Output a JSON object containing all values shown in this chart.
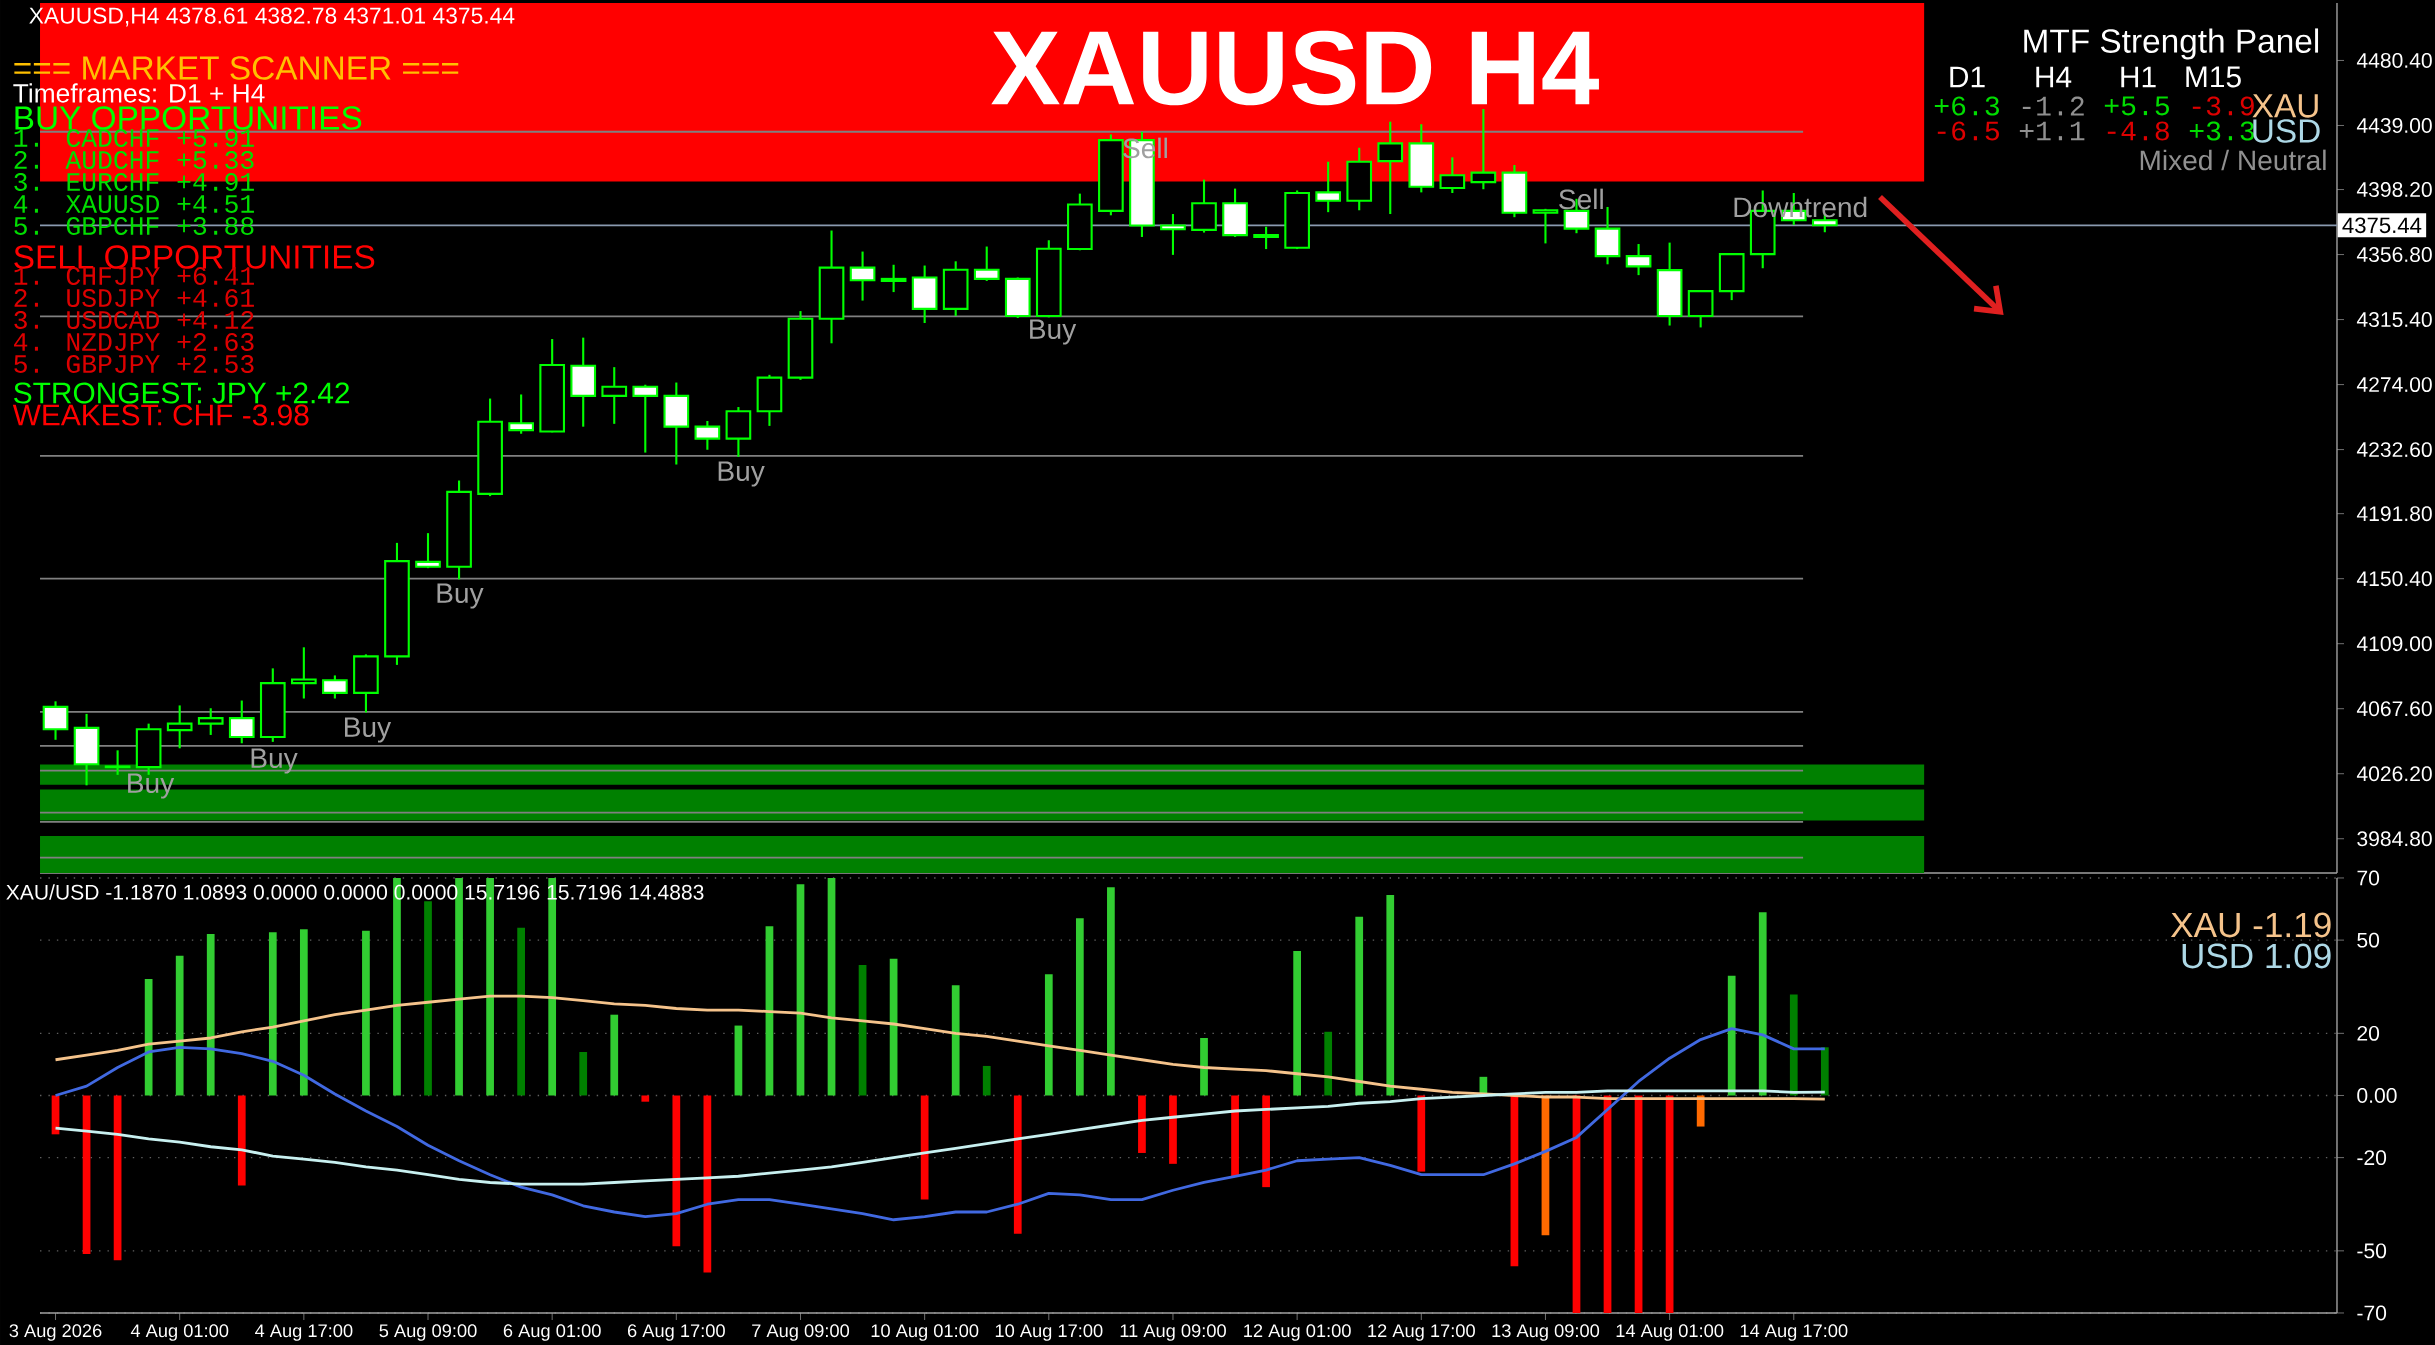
{
  "chart_data": [
    {
      "type": "candlestick",
      "title": "XAUUSD H4",
      "categories": [
        null,
        null,
        null,
        null,
        null,
        null,
        null,
        null,
        null,
        null,
        null,
        null,
        null,
        null,
        null,
        null,
        null,
        null,
        null,
        null,
        null,
        null,
        null,
        null,
        null,
        null,
        null,
        null,
        null,
        null,
        null,
        null,
        null,
        null,
        null,
        null,
        null,
        null,
        null,
        null,
        null,
        null,
        null,
        null,
        null,
        null,
        null,
        null,
        null,
        null,
        null,
        null,
        null,
        null,
        null,
        null,
        null,
        null,
        null,
        null,
        null,
        null,
        null,
        null,
        null,
        null,
        null,
        null,
        null,
        null,
        null,
        null,
        null,
        null
      ],
      "tick_labels": "y",
      "ohlc": [
        [
          4068.8,
          4072.3,
          4047.8,
          4054.5
        ],
        [
          4055.4,
          4064.3,
          4018.8,
          4032.2
        ],
        [
          4030.4,
          4041.1,
          4025.5,
          4030.8
        ],
        [
          4030.4,
          4058.1,
          4025.5,
          4054.5
        ],
        [
          4054.0,
          4069.7,
          4042.4,
          4058.1
        ],
        [
          4058.1,
          4067.9,
          4050.9,
          4061.6
        ],
        [
          4061.6,
          4072.8,
          4045.6,
          4049.6
        ],
        [
          4049.6,
          4093.3,
          4046.5,
          4083.9
        ],
        [
          4083.9,
          4106.7,
          4074.1,
          4086.2
        ],
        [
          4085.7,
          4088.8,
          4074.1,
          4077.7
        ],
        [
          4077.7,
          4102.2,
          4065.2,
          4100.9
        ],
        [
          4100.9,
          4173.2,
          4095.5,
          4161.6
        ],
        [
          4161.1,
          4179.4,
          4157.1,
          4158.0
        ],
        [
          4158.0,
          4212.9,
          4150.0,
          4205.7
        ],
        [
          4204.4,
          4265.1,
          4203.0,
          4250.3
        ],
        [
          4249.4,
          4267.7,
          4242.7,
          4245.0
        ],
        [
          4244.1,
          4303.0,
          4243.6,
          4286.5
        ],
        [
          4286.0,
          4303.9,
          4247.2,
          4266.8
        ],
        [
          4266.8,
          4285.1,
          4249.0,
          4272.6
        ],
        [
          4272.6,
          4273.9,
          4230.7,
          4266.8
        ],
        [
          4266.8,
          4275.3,
          4223.1,
          4247.2
        ],
        [
          4247.2,
          4250.8,
          4232.5,
          4239.6
        ],
        [
          4239.6,
          4259.7,
          4228.0,
          4257.0
        ],
        [
          4257.0,
          4280.2,
          4247.7,
          4278.4
        ],
        [
          4278.4,
          4320.8,
          4277.0,
          4315.9
        ],
        [
          4315.9,
          4372.1,
          4300.3,
          4348.5
        ],
        [
          4348.5,
          4358.7,
          4327.5,
          4340.4
        ],
        [
          4341.3,
          4350.3,
          4332.9,
          4340.0
        ],
        [
          4342.2,
          4349.8,
          4313.2,
          4322.2
        ],
        [
          4322.2,
          4352.5,
          4317.7,
          4347.1
        ],
        [
          4347.1,
          4361.9,
          4340.0,
          4341.3
        ],
        [
          4341.3,
          4342.2,
          4316.4,
          4317.7
        ],
        [
          4317.7,
          4365.9,
          4316.8,
          4360.5
        ],
        [
          4360.3,
          4395.6,
          4359.5,
          4388.7
        ],
        [
          4384.6,
          4433.3,
          4381.8,
          4429.7
        ],
        [
          4429.7,
          4434.9,
          4368.0,
          4375.3
        ],
        [
          4375.3,
          4382.6,
          4356.6,
          4372.9
        ],
        [
          4372.5,
          4404.5,
          4370.8,
          4389.5
        ],
        [
          4389.5,
          4398.8,
          4368.0,
          4369.2
        ],
        [
          4369.2,
          4374.5,
          4360.3,
          4368.0
        ],
        [
          4361.1,
          4397.6,
          4360.3,
          4396.0
        ],
        [
          4396.4,
          4415.9,
          4383.8,
          4391.1
        ],
        [
          4391.1,
          4424.8,
          4385.0,
          4415.9
        ],
        [
          4416.3,
          4441.4,
          4382.6,
          4427.6
        ],
        [
          4427.6,
          4439.8,
          4396.4,
          4400.0
        ],
        [
          4399.2,
          4418.7,
          4396.0,
          4407.3
        ],
        [
          4402.9,
          4449.5,
          4398.4,
          4409.0
        ],
        [
          4409.0,
          4413.8,
          4380.6,
          4383.4
        ],
        [
          4383.4,
          4385.9,
          4363.9,
          4385.0
        ],
        [
          4384.6,
          4392.3,
          4370.4,
          4373.3
        ],
        [
          4373.3,
          4387.1,
          4350.6,
          4355.8
        ],
        [
          4355.8,
          4363.5,
          4343.7,
          4349.3
        ],
        [
          4346.9,
          4364.4,
          4311.6,
          4317.7
        ],
        [
          4317.7,
          4333.5,
          4310.4,
          4333.5
        ],
        [
          4333.5,
          4357.1,
          4327.8,
          4357.1
        ],
        [
          4357.1,
          4397.6,
          4348.1,
          4384.6
        ],
        [
          4384.6,
          4396.0,
          4375.7,
          4378.6
        ],
        [
          4378.61,
          4382.78,
          4371.01,
          4375.44
        ],
        null,
        null,
        null,
        null,
        null,
        null,
        null,
        null,
        null,
        null,
        null,
        null,
        null,
        null,
        null,
        null
      ],
      "ylim": [
        3963,
        4517
      ],
      "yticks": [
        {
          "value": 3984.8,
          "label": "3984.80"
        },
        {
          "value": 4026.2,
          "label": "4026.20"
        },
        {
          "value": 4067.6,
          "label": "4067.60"
        },
        {
          "value": 4109.0,
          "label": "4109.00"
        },
        {
          "value": 4150.4,
          "label": "4150.40"
        },
        {
          "value": 4191.8,
          "label": "4191.80"
        },
        {
          "value": 4232.6,
          "label": "4232.60"
        },
        {
          "value": 4274.0,
          "label": "4274.00"
        },
        {
          "value": 4315.4,
          "label": "4315.40"
        },
        {
          "value": 4356.8,
          "label": "4356.80"
        },
        {
          "value": 4398.2,
          "label": "4398.20"
        },
        {
          "value": 4439.0,
          "label": "4439.00"
        },
        {
          "value": 4480.4,
          "label": "4480.40"
        }
      ],
      "bands": [
        {
          "axis": "y",
          "from": 4403.4,
          "to": 4517,
          "color": "#ff0000"
        },
        {
          "axis": "y",
          "from": 4019.2,
          "to": 4032.0,
          "color": "#008000"
        },
        {
          "axis": "y",
          "from": 3996.5,
          "to": 4016.2,
          "color": "#008000"
        },
        {
          "axis": "y",
          "from": 3963,
          "to": 3986.6,
          "color": "#008000"
        }
      ],
      "ref_lines": [
        {
          "axis": "y",
          "value": 4435.0,
          "color": "#808080"
        },
        {
          "axis": "y",
          "value": 4317.4,
          "color": "#808080"
        },
        {
          "axis": "y",
          "value": 4228.6,
          "color": "#808080"
        },
        {
          "axis": "y",
          "value": 4150.5,
          "color": "#808080"
        },
        {
          "axis": "y",
          "value": 4065.6,
          "color": "#808080"
        },
        {
          "axis": "y",
          "value": 4043.9,
          "color": "#808080"
        },
        {
          "axis": "y",
          "value": 4028.1,
          "color": "#808080"
        },
        {
          "axis": "y",
          "value": 4001.4,
          "color": "#808080"
        },
        {
          "axis": "y",
          "value": 3995.5,
          "color": "#808080"
        },
        {
          "axis": "y",
          "value": 3972.8,
          "color": "#808080"
        },
        {
          "axis": "y",
          "value": 4375.44,
          "label": "4375.44",
          "color": "#8a9ab0"
        }
      ],
      "annotations": [
        "XAUUSD,H4 4378.61 4382.78 4371.01 4375.44",
        "=== MARKET SCANNER ===",
        "Timeframes: D1 + H4",
        "BUY OPPORTUNITIES",
        "1. CADCHF +5.91",
        "2. AUDCHF +5.33",
        "3. EURCHF +4.91",
        "4. XAUUSD +4.51",
        "5. GBPCHF +3.88",
        "SELL OPPORTUNITIES",
        "1. CHFJPY +6.41",
        "2. USDJPY +4.61",
        "3. USDCAD +4.12",
        "4. NZDJPY +2.63",
        "5. GBPJPY +2.53",
        "STRONGEST: JPY +2.42",
        "WEAKEST: CHF -3.98",
        "MTF Strength Panel",
        "D1",
        "H4",
        "H1",
        "M15",
        "+6.3",
        "-1.2",
        "+5.5",
        "-3.9",
        "XAU",
        "-6.5",
        "+1.1",
        "-4.8",
        "+3.3",
        "USD",
        "Mixed / Neutral",
        "Buy",
        "Buy",
        "Buy",
        "Buy",
        "Buy",
        "Buy",
        "Sell",
        "Sell",
        "Downtrend"
      ]
    },
    {
      "type": "bar",
      "categories": [
        "3 Aug 2026",
        null,
        null,
        null,
        "4 Aug 01:00",
        null,
        null,
        null,
        "4 Aug 17:00",
        null,
        null,
        null,
        "5 Aug 09:00",
        null,
        null,
        null,
        "6 Aug 01:00",
        null,
        null,
        null,
        "6 Aug 17:00",
        null,
        null,
        null,
        "7 Aug 09:00",
        null,
        null,
        null,
        "10 Aug 01:00",
        null,
        null,
        null,
        "10 Aug 17:00",
        null,
        null,
        null,
        "11 Aug 09:00",
        null,
        null,
        null,
        "12 Aug 01:00",
        null,
        null,
        null,
        "12 Aug 17:00",
        null,
        null,
        null,
        "13 Aug 09:00",
        null,
        null,
        null,
        "14 Aug 01:00",
        null,
        null,
        null,
        "14 Aug 17:00",
        null,
        null,
        null,
        null,
        null,
        null,
        null,
        null,
        null,
        null,
        null,
        null,
        null,
        null,
        null,
        null,
        null
      ],
      "series": [
        {
          "type": "bar",
          "values": [
            -12.5,
            -51,
            -53,
            37.5,
            45,
            52,
            -29,
            52.5,
            53.5,
            null,
            53,
            70,
            62.5,
            70,
            70,
            54,
            70,
            14,
            26,
            -2,
            -48.5,
            -57,
            22.5,
            54.5,
            68,
            70,
            42,
            44,
            -33.5,
            35.5,
            9.5,
            -44.5,
            39,
            57,
            67,
            -18.5,
            -22,
            18.5,
            -26,
            -29.5,
            46.5,
            20.5,
            57.5,
            64.5,
            -24.5,
            null,
            6,
            -55,
            -45,
            -70,
            -70,
            -70,
            -70,
            -10,
            38.5,
            59,
            32.5,
            15.5,
            null,
            null,
            null,
            null,
            null,
            null,
            null,
            null,
            null,
            null,
            null,
            null,
            null,
            null,
            null,
            null
          ],
          "colors": [
            "#ff0000",
            "#ff0000",
            "#ff0000",
            "#32cd32",
            "#32cd32",
            "#32cd32",
            "#ff0000",
            "#32cd32",
            "#32cd32",
            null,
            "#32cd32",
            "#32cd32",
            "#008000",
            "#32cd32",
            "#32cd32",
            "#008000",
            "#32cd32",
            "#008000",
            "#32cd32",
            "#ff0000",
            "#ff0000",
            "#ff0000",
            "#32cd32",
            "#32cd32",
            "#32cd32",
            "#32cd32",
            "#008000",
            "#32cd32",
            "#ff0000",
            "#32cd32",
            "#008000",
            "#ff0000",
            "#32cd32",
            "#32cd32",
            "#32cd32",
            "#ff0000",
            "#ff0000",
            "#32cd32",
            "#ff0000",
            "#ff0000",
            "#32cd32",
            "#008000",
            "#32cd32",
            "#32cd32",
            "#ff0000",
            null,
            "#32cd32",
            "#ff0000",
            "#ff6a00",
            "#ff0000",
            "#ff0000",
            "#ff0000",
            "#ff0000",
            "#ff6a00",
            "#32cd32",
            "#32cd32",
            "#008000",
            "#008000",
            null,
            null,
            null,
            null,
            null,
            null,
            null,
            null,
            null,
            null,
            null,
            null,
            null,
            null,
            null,
            null
          ]
        },
        {
          "type": "line",
          "color": "#f5c38b",
          "values": [
            11.5,
            13,
            14.5,
            16.5,
            17.5,
            18.5,
            20.5,
            22,
            24,
            26,
            27.5,
            29,
            30,
            31,
            32,
            32,
            31.5,
            30.5,
            29.5,
            29,
            28,
            27.5,
            27.5,
            27,
            26.5,
            25,
            24,
            23,
            21.5,
            20,
            19,
            17.5,
            16,
            14.5,
            13,
            11.5,
            10,
            9,
            8.5,
            8,
            7,
            6,
            4.5,
            3,
            2,
            1,
            0.5,
            0,
            -0.5,
            -0.5,
            -1,
            -1,
            -1,
            -1,
            -1,
            -1,
            -1,
            -1.19,
            null,
            null,
            null,
            null,
            null,
            null,
            null,
            null,
            null,
            null,
            null,
            null,
            null,
            null,
            null,
            null
          ]
        },
        {
          "type": "line",
          "color": "#4169e1",
          "values": [
            0,
            3,
            9,
            14,
            15.5,
            15,
            13.5,
            11,
            6.5,
            0.5,
            -5,
            -10,
            -16,
            -21,
            -25.5,
            -29.5,
            -32,
            -35.5,
            -37.5,
            -39,
            -38,
            -35,
            -33.5,
            -33.5,
            -35,
            -36.5,
            -38,
            -40,
            -39,
            -37.5,
            -37.5,
            -35,
            -31.5,
            -32,
            -33.5,
            -33.5,
            -30.5,
            -28,
            -26,
            -24,
            -21,
            -20.5,
            -20,
            -22.5,
            -25.5,
            -25.5,
            -25.5,
            -22,
            -18,
            -13.5,
            -4.5,
            4.5,
            12,
            18,
            21.5,
            19.5,
            15,
            15,
            null,
            null,
            null,
            null,
            null,
            null,
            null,
            null,
            null,
            null,
            null,
            null,
            null,
            null,
            null,
            null
          ]
        },
        {
          "type": "line",
          "color": "#c8f0f0",
          "values": [
            -10.5,
            -11.5,
            -12.5,
            -14,
            -15,
            -16.5,
            -17.5,
            -19.5,
            -20.5,
            -21.5,
            -23,
            -24,
            -25.5,
            -27,
            -28,
            -28.5,
            -28.5,
            -28.5,
            -28,
            -27.5,
            -27,
            -26.5,
            -26,
            -25,
            -24,
            -23,
            -21.5,
            -20,
            -18.5,
            -17,
            -15.5,
            -14,
            -12.5,
            -11,
            -9.5,
            -8,
            -7,
            -6,
            -5,
            -4.5,
            -4,
            -3.5,
            -2.5,
            -2,
            -1,
            -0.5,
            0,
            0.5,
            1,
            1,
            1.5,
            1.5,
            1.5,
            1.5,
            1.5,
            1.5,
            1,
            1.09,
            null,
            null,
            null,
            null,
            null,
            null,
            null,
            null,
            null,
            null,
            null,
            null,
            null,
            null,
            null,
            null
          ]
        }
      ],
      "ylim": [
        -70,
        70
      ],
      "yticks": [
        -70,
        -50,
        -20,
        {
          "value": 0,
          "label": "0.00"
        },
        20,
        50,
        70
      ],
      "grid": "y",
      "annotations": [
        "XAU/USD -1.1870 1.0893 0.0000 0.0000 0.0000 15.7196 15.7196 14.4883",
        "XAU -1.19",
        "USD 1.09"
      ]
    }
  ]
}
